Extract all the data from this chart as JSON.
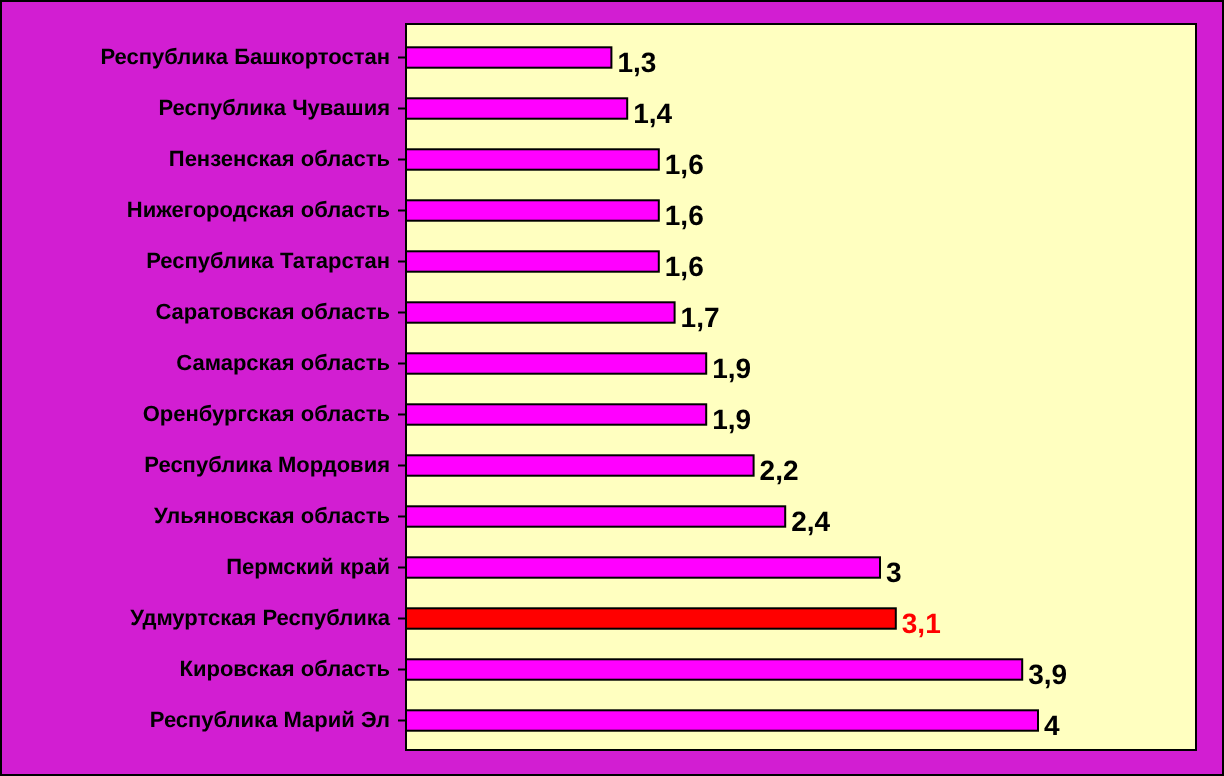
{
  "chart_data": {
    "type": "bar",
    "orientation": "horizontal",
    "categories": [
      "Республика Башкортостан",
      "Республика Чувашия",
      "Пензенская область",
      "Нижегородская область",
      "Республика Татарстан",
      "Саратовская область",
      "Самарская область",
      "Оренбургская область",
      "Республика Мордовия",
      "Ульяновская область",
      "Пермский край",
      "Удмуртская Республика",
      "Кировская область",
      "Республика Марий Эл"
    ],
    "values": [
      1.3,
      1.4,
      1.6,
      1.6,
      1.6,
      1.7,
      1.9,
      1.9,
      2.2,
      2.4,
      3,
      3.1,
      3.9,
      4
    ],
    "colors": [
      "#ff00ff",
      "#ff00ff",
      "#ff00ff",
      "#ff00ff",
      "#ff00ff",
      "#ff00ff",
      "#ff00ff",
      "#ff00ff",
      "#ff00ff",
      "#ff00ff",
      "#ff00ff",
      "#ff0000",
      "#ff00ff",
      "#ff00ff"
    ],
    "value_labels": [
      "1,3",
      "1,4",
      "1,6",
      "1,6",
      "1,6",
      "1,7",
      "1,9",
      "1,9",
      "2,2",
      "2,4",
      "3",
      "3,1",
      "3,9",
      "4"
    ]
  }
}
